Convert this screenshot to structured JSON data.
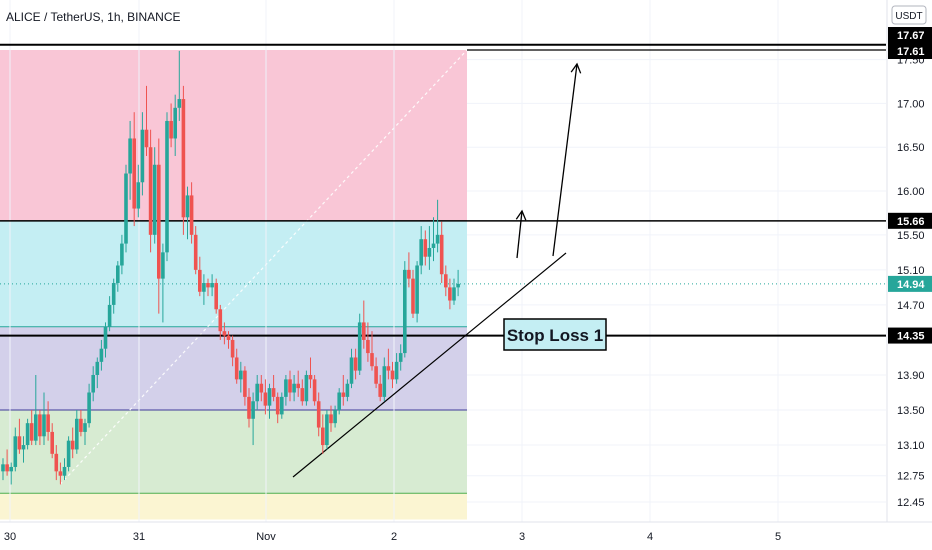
{
  "header": {
    "symbol_title": "ALICE / TetherUS, 1h, BINANCE",
    "currency_badge": "USDT"
  },
  "chart_data": {
    "type": "candlestick",
    "symbol": "ALICE / TetherUS",
    "interval": "1h",
    "exchange": "BINANCE",
    "currency": "USDT",
    "y_axis": {
      "ticks": [
        17.5,
        17.0,
        16.5,
        16.0,
        15.5,
        15.1,
        14.7,
        13.9,
        13.5,
        13.1,
        12.75,
        12.45
      ],
      "range": [
        12.25,
        17.9
      ]
    },
    "x_axis": {
      "ticks": [
        {
          "label": "30",
          "pos": 0
        },
        {
          "label": "31",
          "pos": 1
        },
        {
          "label": "Nov",
          "pos": 2
        },
        {
          "label": "2",
          "pos": 3
        },
        {
          "label": "3",
          "pos": 4
        },
        {
          "label": "4",
          "pos": 5
        },
        {
          "label": "5",
          "pos": 6
        }
      ]
    },
    "price_labels": [
      {
        "value": 17.67,
        "style": "black"
      },
      {
        "value": 17.61,
        "style": "black"
      },
      {
        "value": 15.66,
        "style": "black"
      },
      {
        "value": 14.94,
        "style": "current"
      },
      {
        "value": 14.35,
        "style": "black"
      }
    ],
    "horizontal_lines": [
      {
        "value": 17.67,
        "color": "#000000",
        "width": 2
      },
      {
        "value": 15.66,
        "color": "#000000",
        "width": 1.5
      },
      {
        "value": 14.35,
        "color": "#000000",
        "width": 2
      }
    ],
    "fib_zones": [
      {
        "from": 17.61,
        "to": 15.66,
        "color": "#f9c6d6"
      },
      {
        "from": 15.66,
        "to": 14.45,
        "color": "#c4eef3"
      },
      {
        "from": 14.45,
        "to": 13.5,
        "color": "#d3d0ea"
      },
      {
        "from": 13.5,
        "to": 12.55,
        "color": "#d7ebd2"
      },
      {
        "from": 12.55,
        "to": 12.25,
        "color": "#fbf5d2"
      }
    ],
    "current_price": 14.94,
    "up_color": "#26a69a",
    "down_color": "#ef5350",
    "annotations": [
      {
        "type": "text-box",
        "text": "Stop Loss 1",
        "border": "#000000",
        "background": "#c4eef3"
      }
    ],
    "candles": [
      [
        12.8,
        12.95,
        12.7,
        12.88
      ],
      [
        12.88,
        13.05,
        12.75,
        12.8
      ],
      [
        12.8,
        12.9,
        12.65,
        12.85
      ],
      [
        12.85,
        13.3,
        12.8,
        13.2
      ],
      [
        13.2,
        13.4,
        13.0,
        13.05
      ],
      [
        13.05,
        13.2,
        12.9,
        13.1
      ],
      [
        13.1,
        13.4,
        13.05,
        13.35
      ],
      [
        13.35,
        13.5,
        13.1,
        13.15
      ],
      [
        13.15,
        13.9,
        13.1,
        13.45
      ],
      [
        13.45,
        13.5,
        13.1,
        13.2
      ],
      [
        13.2,
        13.7,
        13.1,
        13.45
      ],
      [
        13.45,
        13.6,
        13.15,
        13.25
      ],
      [
        13.25,
        13.35,
        12.95,
        13.0
      ],
      [
        13.0,
        13.1,
        12.7,
        12.8
      ],
      [
        12.8,
        12.9,
        12.65,
        12.75
      ],
      [
        12.75,
        12.95,
        12.7,
        12.85
      ],
      [
        12.85,
        13.2,
        12.8,
        13.15
      ],
      [
        13.15,
        13.3,
        12.95,
        13.05
      ],
      [
        13.05,
        13.5,
        13.0,
        13.4
      ],
      [
        13.4,
        13.5,
        13.2,
        13.25
      ],
      [
        13.25,
        13.4,
        13.1,
        13.35
      ],
      [
        13.35,
        13.8,
        13.3,
        13.7
      ],
      [
        13.7,
        14.0,
        13.6,
        13.9
      ],
      [
        13.9,
        14.1,
        13.75,
        14.05
      ],
      [
        14.05,
        14.3,
        13.95,
        14.2
      ],
      [
        14.2,
        14.5,
        14.1,
        14.45
      ],
      [
        14.45,
        14.8,
        14.4,
        14.7
      ],
      [
        14.7,
        15.0,
        14.6,
        14.95
      ],
      [
        14.95,
        15.2,
        14.85,
        15.15
      ],
      [
        15.15,
        15.5,
        15.05,
        15.4
      ],
      [
        15.4,
        16.3,
        15.3,
        16.2
      ],
      [
        16.2,
        16.8,
        15.9,
        16.6
      ],
      [
        16.6,
        16.9,
        15.6,
        15.8
      ],
      [
        15.8,
        16.3,
        15.7,
        16.1
      ],
      [
        16.1,
        16.9,
        15.95,
        16.7
      ],
      [
        16.7,
        17.2,
        16.4,
        16.5
      ],
      [
        16.5,
        16.7,
        15.3,
        15.5
      ],
      [
        15.5,
        16.5,
        15.4,
        16.3
      ],
      [
        16.3,
        16.6,
        14.6,
        15.0
      ],
      [
        15.0,
        15.4,
        14.5,
        15.3
      ],
      [
        15.3,
        16.9,
        15.2,
        16.8
      ],
      [
        16.8,
        17.0,
        16.5,
        16.6
      ],
      [
        16.6,
        17.1,
        16.4,
        16.95
      ],
      [
        16.95,
        17.6,
        16.8,
        17.05
      ],
      [
        17.05,
        17.2,
        15.5,
        15.7
      ],
      [
        15.7,
        16.05,
        15.45,
        15.95
      ],
      [
        15.95,
        16.1,
        15.4,
        15.5
      ],
      [
        15.5,
        15.6,
        15.05,
        15.1
      ],
      [
        15.1,
        15.25,
        14.8,
        14.85
      ],
      [
        14.85,
        15.05,
        14.7,
        14.95
      ],
      [
        14.95,
        15.0,
        14.8,
        14.9
      ],
      [
        14.9,
        15.05,
        14.8,
        14.95
      ],
      [
        14.95,
        15.0,
        14.6,
        14.65
      ],
      [
        14.65,
        14.7,
        14.3,
        14.4
      ],
      [
        14.4,
        14.5,
        14.25,
        14.35
      ],
      [
        14.35,
        14.4,
        14.2,
        14.3
      ],
      [
        14.3,
        14.35,
        14.0,
        14.1
      ],
      [
        14.1,
        14.2,
        13.8,
        13.85
      ],
      [
        13.85,
        14.05,
        13.7,
        13.95
      ],
      [
        13.95,
        14.0,
        13.55,
        13.65
      ],
      [
        13.65,
        13.75,
        13.3,
        13.4
      ],
      [
        13.4,
        13.7,
        13.1,
        13.6
      ],
      [
        13.6,
        13.9,
        13.5,
        13.8
      ],
      [
        13.8,
        13.9,
        13.6,
        13.7
      ],
      [
        13.7,
        13.85,
        13.45,
        13.55
      ],
      [
        13.55,
        13.8,
        13.4,
        13.75
      ],
      [
        13.75,
        13.9,
        13.6,
        13.65
      ],
      [
        13.65,
        13.7,
        13.35,
        13.45
      ],
      [
        13.45,
        13.7,
        13.4,
        13.65
      ],
      [
        13.65,
        13.9,
        13.55,
        13.85
      ],
      [
        13.85,
        13.95,
        13.6,
        13.7
      ],
      [
        13.7,
        13.9,
        13.6,
        13.8
      ],
      [
        13.8,
        13.95,
        13.65,
        13.75
      ],
      [
        13.75,
        13.85,
        13.55,
        13.6
      ],
      [
        13.6,
        13.95,
        13.55,
        13.9
      ],
      [
        13.9,
        14.1,
        13.75,
        13.85
      ],
      [
        13.85,
        13.9,
        13.55,
        13.6
      ],
      [
        13.6,
        13.7,
        13.2,
        13.3
      ],
      [
        13.3,
        13.45,
        13.0,
        13.1
      ],
      [
        13.1,
        13.5,
        13.05,
        13.45
      ],
      [
        13.45,
        13.55,
        13.25,
        13.35
      ],
      [
        13.35,
        13.55,
        13.3,
        13.5
      ],
      [
        13.5,
        13.75,
        13.45,
        13.7
      ],
      [
        13.7,
        13.9,
        13.55,
        13.65
      ],
      [
        13.65,
        13.85,
        13.6,
        13.8
      ],
      [
        13.8,
        14.2,
        13.75,
        14.1
      ],
      [
        14.1,
        14.2,
        13.85,
        13.95
      ],
      [
        13.95,
        14.6,
        13.9,
        14.5
      ],
      [
        14.5,
        14.75,
        14.2,
        14.3
      ],
      [
        14.3,
        14.5,
        14.05,
        14.15
      ],
      [
        14.15,
        14.4,
        13.95,
        14.0
      ],
      [
        14.0,
        14.1,
        13.75,
        13.8
      ],
      [
        13.8,
        13.9,
        13.6,
        13.65
      ],
      [
        13.65,
        14.1,
        13.6,
        14.0
      ],
      [
        14.0,
        14.2,
        13.85,
        13.95
      ],
      [
        13.95,
        14.05,
        13.75,
        13.85
      ],
      [
        13.85,
        14.15,
        13.8,
        14.05
      ],
      [
        14.05,
        14.25,
        13.95,
        14.15
      ],
      [
        14.15,
        15.2,
        14.1,
        15.1
      ],
      [
        15.1,
        15.3,
        14.9,
        15.0
      ],
      [
        15.0,
        15.1,
        14.55,
        14.6
      ],
      [
        14.6,
        15.2,
        14.5,
        15.15
      ],
      [
        15.15,
        15.6,
        15.05,
        15.45
      ],
      [
        15.45,
        15.55,
        15.15,
        15.25
      ],
      [
        15.25,
        15.6,
        15.1,
        15.35
      ],
      [
        15.35,
        15.7,
        15.2,
        15.4
      ],
      [
        15.4,
        15.9,
        15.3,
        15.5
      ],
      [
        15.5,
        15.65,
        14.95,
        15.05
      ],
      [
        15.05,
        15.15,
        14.8,
        14.9
      ],
      [
        14.9,
        15.0,
        14.65,
        14.75
      ],
      [
        14.75,
        15.0,
        14.7,
        14.9
      ],
      [
        14.9,
        15.1,
        14.8,
        14.94
      ]
    ]
  }
}
